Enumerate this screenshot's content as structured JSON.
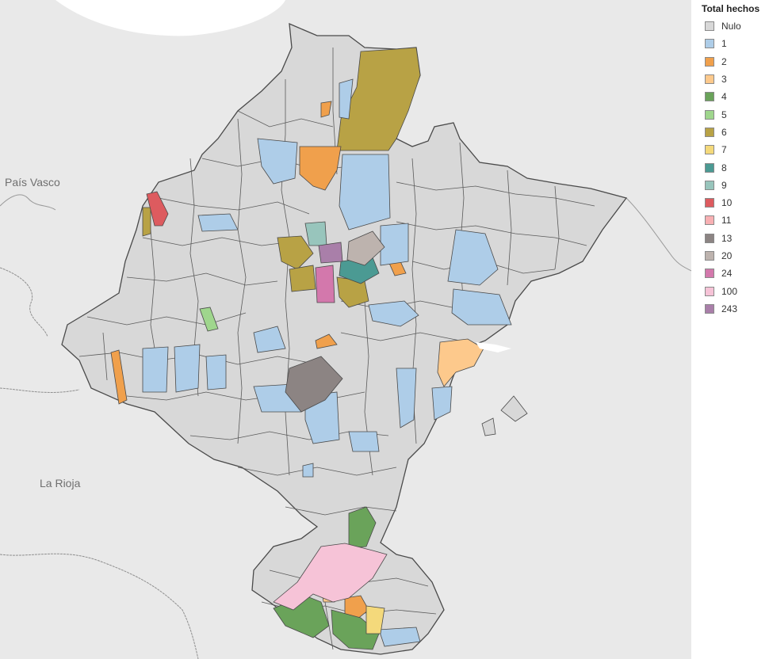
{
  "map": {
    "place_labels": [
      {
        "id": "pais-vasco",
        "text": "País Vasco"
      },
      {
        "id": "la-rioja",
        "text": "La Rioja"
      }
    ]
  },
  "legend": {
    "title": "Total hechos",
    "items": [
      {
        "label": "Nulo",
        "color": "#d8d8d8"
      },
      {
        "label": "1",
        "color": "#aecde8"
      },
      {
        "label": "2",
        "color": "#f0a04c"
      },
      {
        "label": "3",
        "color": "#fdc98c"
      },
      {
        "label": "4",
        "color": "#6aa35a"
      },
      {
        "label": "5",
        "color": "#9fd68d"
      },
      {
        "label": "6",
        "color": "#b8a245"
      },
      {
        "label": "7",
        "color": "#f4d97b"
      },
      {
        "label": "8",
        "color": "#4b9a93"
      },
      {
        "label": "9",
        "color": "#98c5bc"
      },
      {
        "label": "10",
        "color": "#dd5b5f"
      },
      {
        "label": "11",
        "color": "#f8b0b3"
      },
      {
        "label": "13",
        "color": "#8c8483"
      },
      {
        "label": "20",
        "color": "#bdb3ae"
      },
      {
        "label": "24",
        "color": "#d378ac"
      },
      {
        "label": "100",
        "color": "#f6c3d7"
      },
      {
        "label": "243",
        "color": "#a97fa9"
      }
    ]
  }
}
